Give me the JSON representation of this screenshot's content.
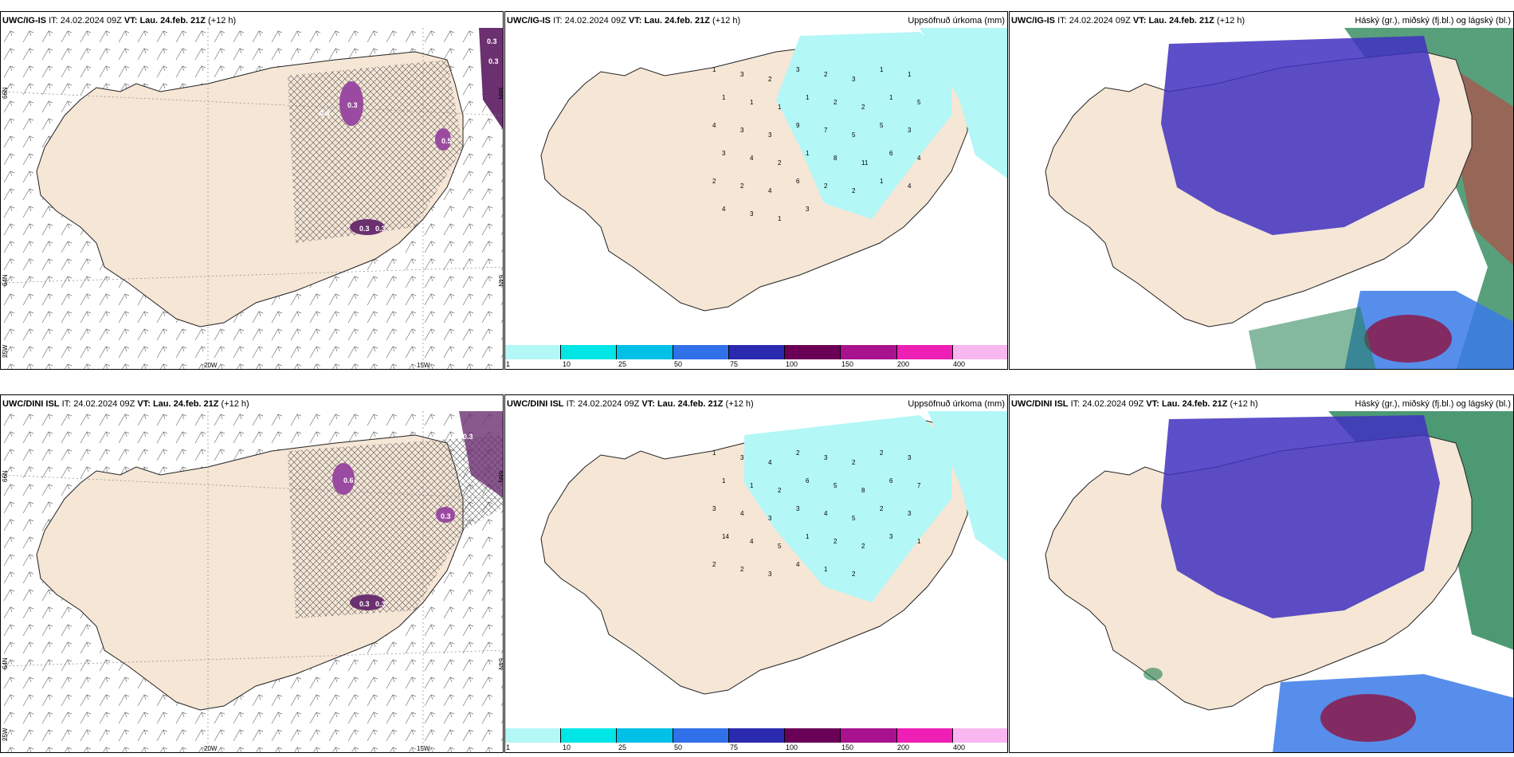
{
  "rows": [
    {
      "model": "UWC/IG-IS",
      "it_label": "IT:",
      "it_value": "24.02.2024 09Z",
      "vt_label": "VT:",
      "vt_value": "Lau. 24.feb. 21Z",
      "lead": "(+12 h)",
      "wind_panel": {
        "lat_labels": [
          "66N",
          "64N",
          "66N",
          "64N",
          "25W"
        ],
        "lon_labels": [
          "20W",
          "15W"
        ],
        "value_labels": [
          "0.3",
          "0.3",
          "0.3",
          "0.3",
          "0.5",
          "0.3",
          "0.6"
        ]
      },
      "precip_panel": {
        "title_right": "Uppsöfnuð úrkoma (mm)",
        "point_values": [
          "1",
          "3",
          "2",
          "3",
          "2",
          "3",
          "1",
          "1",
          "1",
          "1",
          "1",
          "1",
          "2",
          "2",
          "1",
          "5",
          "4",
          "3",
          "3",
          "9",
          "7",
          "5",
          "5",
          "3",
          "3",
          "4",
          "2",
          "1",
          "8",
          "11",
          "6",
          "4",
          "2",
          "2",
          "4",
          "6",
          "2",
          "2",
          "1",
          "4",
          "4",
          "3",
          "1",
          "3"
        ]
      },
      "cloud_panel": {
        "title_right": "Háský (gr.), miðský (fj.bl.) og lágský (bl.)"
      }
    },
    {
      "model": "UWC/DINI ISL",
      "it_label": "IT:",
      "it_value": "24.02.2024 09Z",
      "vt_label": "VT:",
      "vt_value": "Lau. 24.feb. 21Z",
      "lead": "(+12 h)",
      "wind_panel": {
        "lat_labels": [
          "66N",
          "64N",
          "66N",
          "64N",
          "25W"
        ],
        "lon_labels": [
          "20W",
          "15W"
        ],
        "value_labels": [
          "0.3",
          "0.6",
          "0.3",
          "0.3",
          "0.3"
        ]
      },
      "precip_panel": {
        "title_right": "Uppsöfnuð úrkoma (mm)",
        "point_values": [
          "1",
          "3",
          "4",
          "2",
          "3",
          "2",
          "2",
          "3",
          "1",
          "1",
          "2",
          "6",
          "5",
          "8",
          "6",
          "7",
          "3",
          "4",
          "3",
          "3",
          "4",
          "5",
          "2",
          "3",
          "14",
          "4",
          "5",
          "1",
          "2",
          "2",
          "3",
          "1",
          "2",
          "2",
          "3",
          "4",
          "1",
          "2"
        ]
      },
      "cloud_panel": {
        "title_right": "Háský (gr.), miðský (fj.bl.) og lágský (bl.)"
      }
    }
  ],
  "colorbar": {
    "colors": [
      "#b3f7f7",
      "#00e6e6",
      "#00c0e8",
      "#3070e8",
      "#2a2ab0",
      "#6b0057",
      "#a8128e",
      "#ee1fb4",
      "#f8b7f0"
    ],
    "labels": [
      "1",
      "10",
      "25",
      "50",
      "75",
      "100",
      "150",
      "200",
      "400"
    ]
  },
  "palette": {
    "land": "#f5e6d6",
    "precip_shade": "#b3f7f7",
    "high_cloud": "#208050",
    "mid_cloud": "#4030c0",
    "low_cloud": "#3a7ae8",
    "snow_purple": "#6b3070"
  }
}
